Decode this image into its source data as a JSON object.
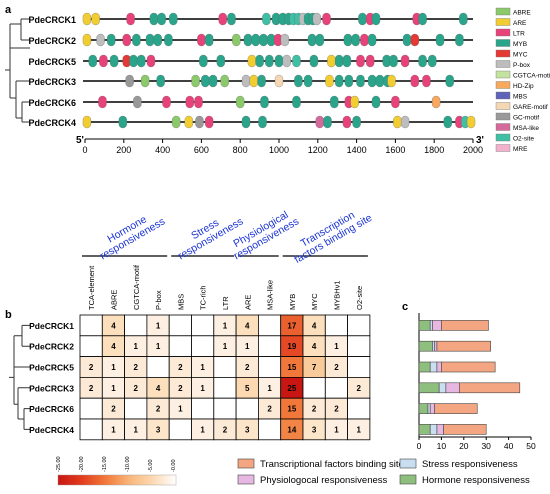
{
  "panels": {
    "a": "a",
    "b": "b",
    "c": "c"
  },
  "panel_a": {
    "genes": [
      "PdeCRCK1",
      "PdeCRCK2",
      "PdeCRCK5",
      "PdeCRCK3",
      "PdeCRCK6",
      "PdeCRCK4"
    ],
    "axis_start": "5'",
    "axis_end": "3'",
    "ticks": [
      0,
      200,
      400,
      600,
      800,
      1000,
      1200,
      1400,
      1600,
      1800,
      2000
    ],
    "legend": [
      {
        "label": "ABRE",
        "color": "#8cc96a"
      },
      {
        "label": "ARE",
        "color": "#f2cd32"
      },
      {
        "label": "LTR",
        "color": "#e8427a"
      },
      {
        "label": "MYB",
        "color": "#2aa48a"
      },
      {
        "label": "MYC",
        "color": "#e53935"
      },
      {
        "label": "P-box",
        "color": "#bdbdbd"
      },
      {
        "label": "CGTCA-motif",
        "color": "#c4e2a0"
      },
      {
        "label": "HD-Zip",
        "color": "#f9a860"
      },
      {
        "label": "MBS",
        "color": "#5f63b8"
      },
      {
        "label": "GARE-motif",
        "color": "#f6d7b4"
      },
      {
        "label": "GC-motif",
        "color": "#999999"
      },
      {
        "label": "MSA-like",
        "color": "#d4699c"
      },
      {
        "label": "O2-site",
        "color": "#3fbfa4"
      },
      {
        "label": "MRE",
        "color": "#f2b2cc"
      }
    ],
    "elements": [
      [
        "ARE",
        10
      ],
      [
        "ARE",
        55
      ],
      [
        "LTR",
        235
      ],
      [
        "MYB",
        355
      ],
      [
        "MYB",
        395
      ],
      [
        "MYB",
        455
      ],
      [
        "LTR",
        710
      ],
      [
        "MYB",
        755
      ],
      [
        "O2-site",
        935
      ],
      [
        "MYB",
        985
      ],
      [
        "MYB",
        1020
      ],
      [
        "MYB",
        1050
      ],
      [
        "O2-site",
        1075
      ],
      [
        "O2-site",
        1100
      ],
      [
        "P-box",
        1125
      ],
      [
        "MYB",
        1150
      ],
      [
        "MYB",
        1175
      ],
      [
        "P-box",
        1195
      ],
      [
        "LTR",
        1245
      ],
      [
        "MYB",
        1430
      ],
      [
        "LTR",
        1470
      ],
      [
        "MYB",
        1500
      ],
      [
        "LTR",
        1710
      ],
      [
        "MYB",
        1740
      ],
      [
        "MYB",
        1950
      ]
    ],
    "elements_by_gene": {
      "PdeCRCK1": [
        [
          "ARE",
          10
        ],
        [
          "ARE",
          55
        ],
        [
          "LTR",
          235
        ],
        [
          "MYB",
          355
        ],
        [
          "MYB",
          395
        ],
        [
          "MYB",
          455
        ],
        [
          "LTR",
          710
        ],
        [
          "MYB",
          755
        ],
        [
          "O2-site",
          935
        ],
        [
          "MYB",
          985
        ],
        [
          "MYB",
          1020
        ],
        [
          "MYB",
          1050
        ],
        [
          "O2-site",
          1075
        ],
        [
          "O2-site",
          1100
        ],
        [
          "P-box",
          1125
        ],
        [
          "MYB",
          1150
        ],
        [
          "MYB",
          1175
        ],
        [
          "P-box",
          1195
        ],
        [
          "LTR",
          1245
        ],
        [
          "MYB",
          1430
        ],
        [
          "LTR",
          1470
        ],
        [
          "MYB",
          1500
        ],
        [
          "LTR",
          1710
        ],
        [
          "MYB",
          1740
        ],
        [
          "MYB",
          1950
        ]
      ],
      "PdeCRCK2": [
        [
          "ARE",
          10
        ],
        [
          "P-box",
          80
        ],
        [
          "MYB",
          135
        ],
        [
          "LTR",
          215
        ],
        [
          "MYB",
          265
        ],
        [
          "MYB",
          335
        ],
        [
          "MYB",
          375
        ],
        [
          "MYB",
          430
        ],
        [
          "LTR",
          600
        ],
        [
          "MYB",
          640
        ],
        [
          "ABRE",
          780
        ],
        [
          "MYB",
          840
        ],
        [
          "MYB",
          880
        ],
        [
          "MYB",
          920
        ],
        [
          "MYB",
          960
        ],
        [
          "LTR",
          995
        ],
        [
          "P-box",
          1030
        ],
        [
          "MYB",
          1170
        ],
        [
          "MYB",
          1210
        ],
        [
          "MYB",
          1355
        ],
        [
          "MYB",
          1395
        ],
        [
          "LTR",
          1440
        ],
        [
          "MYB",
          1480
        ],
        [
          "MYB",
          1660
        ],
        [
          "MYC",
          1700
        ],
        [
          "MYB",
          1830
        ],
        [
          "MYB",
          1930
        ]
      ],
      "PdeCRCK5": [
        [
          "MYB",
          40
        ],
        [
          "LTR",
          95
        ],
        [
          "MYB",
          150
        ],
        [
          "MYC",
          215
        ],
        [
          "MYB",
          250
        ],
        [
          "MYB",
          290
        ],
        [
          "LTR",
          340
        ],
        [
          "MYB",
          610
        ],
        [
          "MYB",
          700
        ],
        [
          "ARE",
          860
        ],
        [
          "MYB",
          900
        ],
        [
          "MYB",
          950
        ],
        [
          "MYB",
          1000
        ],
        [
          "P-box",
          1040
        ],
        [
          "O2-site",
          1090
        ],
        [
          "MYB",
          1180
        ],
        [
          "ARE",
          1270
        ],
        [
          "MYB",
          1310
        ],
        [
          "MYB",
          1350
        ],
        [
          "LTR",
          1420
        ],
        [
          "LTR",
          1470
        ],
        [
          "MYB",
          1555
        ],
        [
          "MYB",
          1590
        ],
        [
          "LTR",
          1650
        ],
        [
          "MYB",
          1740
        ],
        [
          "MYB",
          1790
        ]
      ],
      "PdeCRCK3": [
        [
          "GC-motif",
          230
        ],
        [
          "ABRE",
          310
        ],
        [
          "MYB",
          390
        ],
        [
          "ABRE",
          570
        ],
        [
          "MYB",
          620
        ],
        [
          "MYB",
          660
        ],
        [
          "ABRE",
          720
        ],
        [
          "P-box",
          830
        ],
        [
          "ARE",
          870
        ],
        [
          "MYB",
          910
        ],
        [
          "GARE-motif",
          1000
        ],
        [
          "MYB",
          1100
        ],
        [
          "MYB",
          1150
        ],
        [
          "ARE",
          1260
        ],
        [
          "MYB",
          1310
        ],
        [
          "MYB",
          1360
        ],
        [
          "MYB",
          1420
        ],
        [
          "MYB",
          1480
        ],
        [
          "MYB",
          1520
        ],
        [
          "MYB",
          1560
        ],
        [
          "ARE",
          1580
        ],
        [
          "LTR",
          1700
        ],
        [
          "LTR",
          1760
        ],
        [
          "MYB",
          1880
        ]
      ],
      "PdeCRCK6": [
        [
          "LTR",
          90
        ],
        [
          "GC-motif",
          270
        ],
        [
          "LTR",
          420
        ],
        [
          "LTR",
          540
        ],
        [
          "LTR",
          585
        ],
        [
          "ABRE",
          800
        ],
        [
          "MYB",
          925
        ],
        [
          "MYB",
          1090
        ],
        [
          "MYB",
          1285
        ],
        [
          "LTR",
          1360
        ],
        [
          "ARE",
          1390
        ],
        [
          "MYB",
          1500
        ],
        [
          "LTR",
          1600
        ],
        [
          "HD-Zip",
          1810
        ]
      ],
      "PdeCRCK4": [
        [
          "ARE",
          10
        ],
        [
          "MYB",
          195
        ],
        [
          "ABRE",
          470
        ],
        [
          "ARE",
          535
        ],
        [
          "GC-motif",
          590
        ],
        [
          "LTR",
          640
        ],
        [
          "MYB",
          830
        ],
        [
          "MYB",
          915
        ],
        [
          "MSA-like",
          1210
        ],
        [
          "MYB",
          1250
        ],
        [
          "LTR",
          1350
        ],
        [
          "MYB",
          1400
        ],
        [
          "ARE",
          1610
        ],
        [
          "P-box",
          1650
        ],
        [
          "MYB",
          1870
        ],
        [
          "LTR",
          1930
        ],
        [
          "O2-site",
          1960
        ],
        [
          "ARE",
          1990
        ]
      ]
    }
  },
  "panel_b": {
    "groups": [
      {
        "label": "Hormone responsiveness",
        "lines": [
          "Hormone",
          "responsiveness"
        ],
        "cols": [
          0,
          3
        ]
      },
      {
        "label": "Stress responsiveness",
        "lines": [
          "Stress",
          "responsiveness"
        ],
        "cols": [
          4,
          6
        ]
      },
      {
        "label": "Physiological responsiveness",
        "lines": [
          "Physiological",
          "responsiveness"
        ],
        "cols": [
          7,
          8
        ]
      },
      {
        "label": "Transcription factors binding site",
        "lines": [
          "Transcription",
          "factors binding site"
        ],
        "cols": [
          9,
          12
        ]
      }
    ],
    "columns": [
      "TCA-element",
      "ABRE",
      "CGTCA-motif",
      "P-box",
      "MBS",
      "TC-rich",
      "LTR",
      "ARE",
      "MSA-like",
      "MYB",
      "MYC",
      "MYBHv1",
      "O2-site"
    ],
    "rows": [
      "PdeCRCK1",
      "PdeCRCK2",
      "PdeCRCK5",
      "PdeCRCK3",
      "PdeCRCK6",
      "PdeCRCK4"
    ],
    "matrix": [
      [
        null,
        4,
        null,
        1,
        null,
        null,
        1,
        4,
        null,
        17,
        4,
        null,
        null
      ],
      [
        null,
        4,
        1,
        1,
        null,
        null,
        1,
        1,
        null,
        19,
        4,
        1,
        null
      ],
      [
        2,
        1,
        2,
        null,
        2,
        1,
        null,
        2,
        null,
        15,
        7,
        2,
        null
      ],
      [
        2,
        1,
        2,
        4,
        2,
        1,
        null,
        5,
        1,
        25,
        null,
        null,
        2
      ],
      [
        null,
        2,
        null,
        2,
        1,
        null,
        null,
        null,
        2,
        15,
        2,
        2,
        null
      ],
      [
        null,
        1,
        1,
        3,
        null,
        1,
        2,
        3,
        null,
        14,
        3,
        1,
        1
      ]
    ],
    "colorbar": {
      "ticks": [
        "25.00",
        "20.00",
        "15.00",
        "10.00",
        "5.00",
        "0.00"
      ]
    }
  },
  "chart_data": {
    "type": "bar",
    "orientation": "horizontal",
    "stacked": true,
    "categories": [
      "PdeCRCK1",
      "PdeCRCK2",
      "PdeCRCK5",
      "PdeCRCK3",
      "PdeCRCK6",
      "PdeCRCK4"
    ],
    "series": [
      {
        "name": "Hormone responsiveness",
        "values": [
          5,
          6,
          5,
          9,
          4,
          5
        ],
        "color": "#8fbf7f"
      },
      {
        "name": "Stress responsiveness",
        "values": [
          1,
          1,
          3,
          3,
          1,
          3
        ],
        "color": "#c9def0"
      },
      {
        "name": "Physiologocal responsiveness",
        "values": [
          4,
          1,
          2,
          6,
          2,
          3
        ],
        "color": "#e6b7e1"
      },
      {
        "name": "Transcriptional factors binding site",
        "values": [
          21,
          24,
          24,
          27,
          19,
          19
        ],
        "color": "#f4a582"
      }
    ],
    "xticks": [
      0,
      10,
      20,
      30,
      40,
      50
    ],
    "xlim": [
      0,
      50
    ]
  }
}
